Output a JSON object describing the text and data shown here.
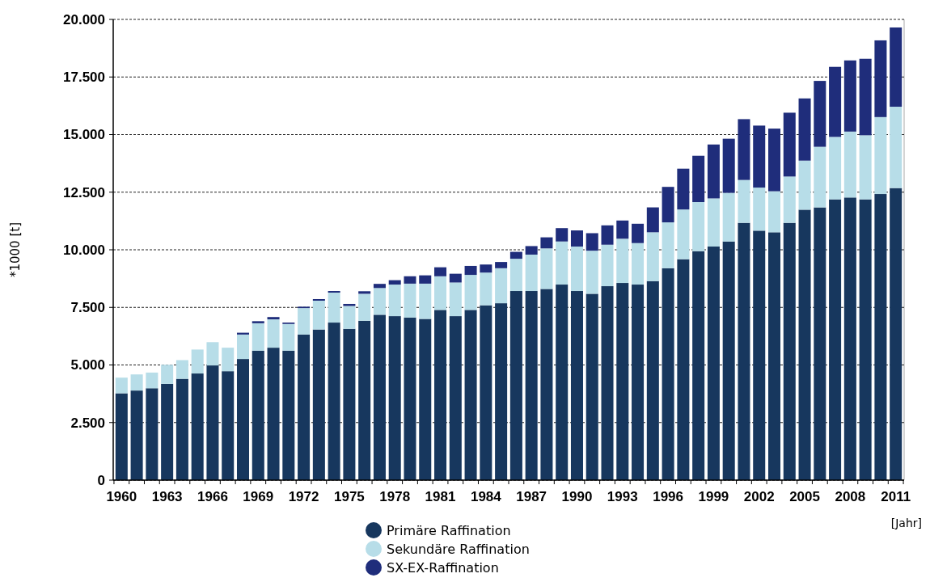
{
  "chart_data": {
    "type": "bar",
    "stacked": true,
    "ylabel": "*1000 [t]",
    "xlabel": "[Jahr]",
    "categories": [
      "1960",
      null,
      null,
      "1963",
      null,
      null,
      "1966",
      null,
      null,
      "1969",
      null,
      null,
      "1972",
      null,
      null,
      "1975",
      null,
      null,
      "1978",
      null,
      null,
      "1981",
      null,
      null,
      "1984",
      null,
      null,
      "1987",
      null,
      null,
      "1990",
      null,
      null,
      "1993",
      null,
      null,
      "1996",
      null,
      null,
      "1999",
      null,
      null,
      "2002",
      null,
      null,
      "2005",
      null,
      null,
      "2008",
      null,
      null,
      "2011"
    ],
    "series": [
      {
        "name": "Primäre Raffination",
        "color": "#17375e",
        "values": [
          3770,
          3890,
          3990,
          4180,
          4400,
          4630,
          4980,
          4730,
          5260,
          5620,
          5750,
          5620,
          6320,
          6540,
          6840,
          6570,
          6920,
          7180,
          7120,
          7060,
          7000,
          7390,
          7120,
          7390,
          7590,
          7680,
          8210,
          8210,
          8300,
          8490,
          8210,
          8090,
          8420,
          8560,
          8490,
          8640,
          9200,
          9590,
          9940,
          10140,
          10360,
          11170,
          10830,
          10760,
          11170,
          11740,
          11840,
          12190,
          12270,
          12190,
          12420,
          12680
        ]
      },
      {
        "name": "Sekundäre Raffination",
        "color": "#b7dde8",
        "values": [
          680,
          700,
          680,
          830,
          810,
          1040,
          1010,
          1020,
          1060,
          1190,
          1230,
          1160,
          1150,
          1250,
          1300,
          990,
          1170,
          1160,
          1370,
          1470,
          1530,
          1460,
          1460,
          1520,
          1420,
          1520,
          1400,
          1580,
          1760,
          1870,
          1930,
          1870,
          1800,
          1920,
          1800,
          2120,
          1990,
          2160,
          2130,
          2090,
          2110,
          1860,
          1870,
          1780,
          2010,
          2130,
          2630,
          2710,
          2860,
          2780,
          3340,
          3530
        ]
      },
      {
        "name": "SX-EX-Raffination",
        "color": "#1f2d7b",
        "values": [
          0,
          0,
          0,
          0,
          0,
          0,
          0,
          0,
          80,
          90,
          100,
          60,
          60,
          70,
          70,
          90,
          110,
          180,
          190,
          320,
          360,
          390,
          380,
          390,
          350,
          270,
          300,
          370,
          480,
          580,
          700,
          760,
          840,
          790,
          840,
          1080,
          1540,
          1770,
          2010,
          2340,
          2350,
          2640,
          2690,
          2720,
          2770,
          2700,
          2860,
          3040,
          3090,
          3320,
          3330,
          3440
        ]
      }
    ],
    "ylim": [
      0,
      20000
    ],
    "yticks": [
      {
        "value": 0,
        "label": "0"
      },
      {
        "value": 2500,
        "label": "2.500"
      },
      {
        "value": 5000,
        "label": "5.000"
      },
      {
        "value": 7500,
        "label": "7.500"
      },
      {
        "value": 10000,
        "label": "10.000"
      },
      {
        "value": 12500,
        "label": "12.500"
      },
      {
        "value": 15000,
        "label": "15.000"
      },
      {
        "value": 17500,
        "label": "17.500"
      },
      {
        "value": 20000,
        "label": "20.000"
      }
    ],
    "grid": "y",
    "legend": "bottom"
  }
}
